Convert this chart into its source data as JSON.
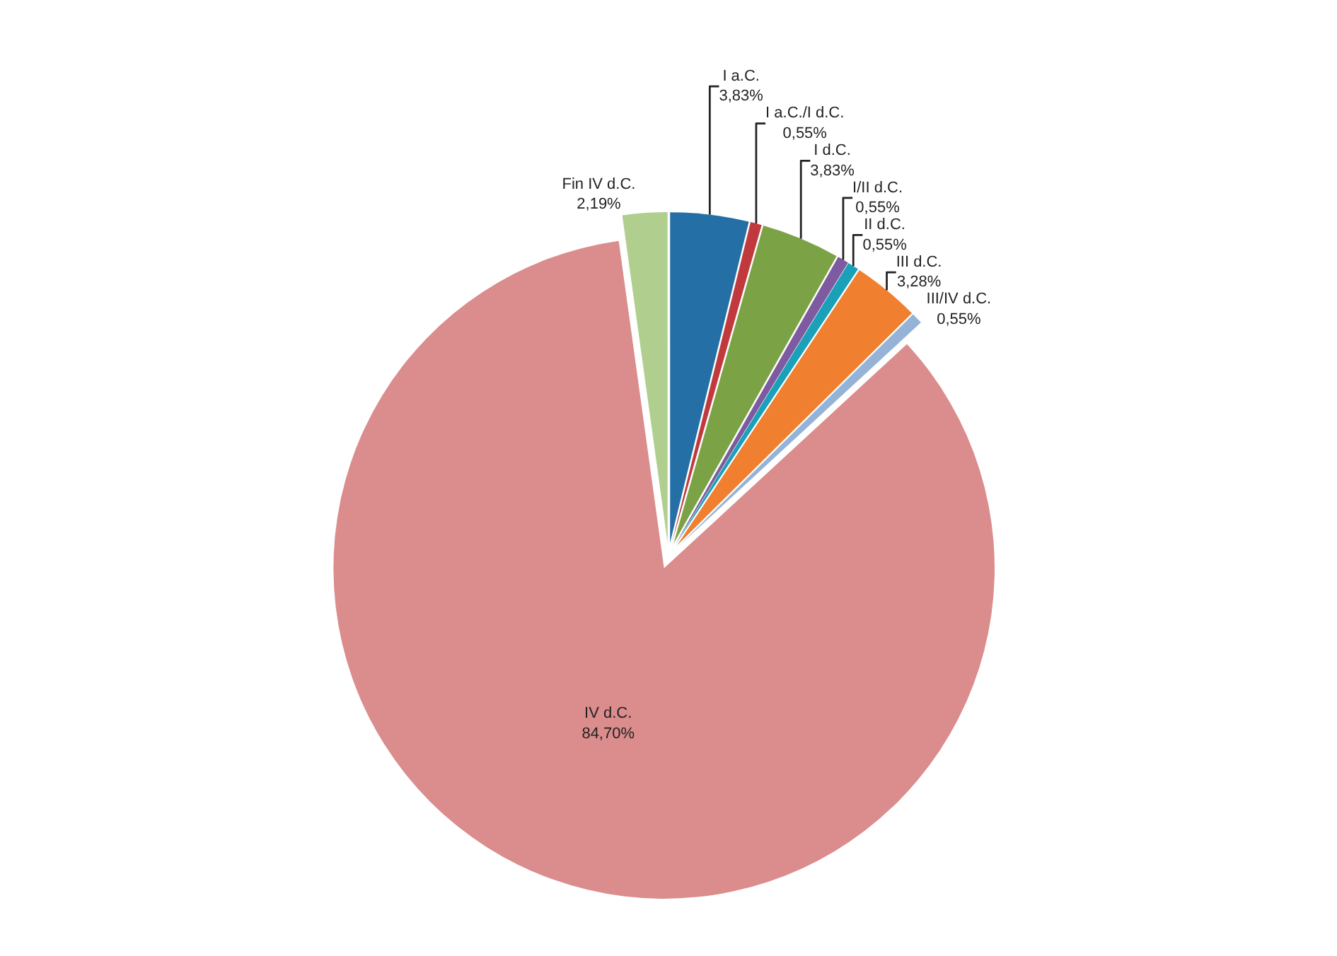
{
  "chart_data": {
    "type": "pie",
    "categories": [
      "I a.C.",
      "I a.C./I d.C.",
      "I d.C.",
      "I/II d.C.",
      "II d.C.",
      "III d.C.",
      "III/IV d.C.",
      "IV d.C.",
      "Fin IV d.C."
    ],
    "values": [
      3.83,
      0.55,
      3.83,
      0.55,
      0.55,
      3.28,
      0.55,
      84.7,
      2.19
    ],
    "value_labels": [
      "3,83%",
      "0,55%",
      "3,83%",
      "0,55%",
      "0,55%",
      "3,28%",
      "0,55%",
      "84,70%",
      "2,19%"
    ],
    "colors": [
      "#2470a6",
      "#c0393d",
      "#7ba345",
      "#7e5aa0",
      "#1aa0b8",
      "#f07f2f",
      "#95b3d7",
      "#db8c8c",
      "#b0cf8f"
    ],
    "legend": false
  }
}
